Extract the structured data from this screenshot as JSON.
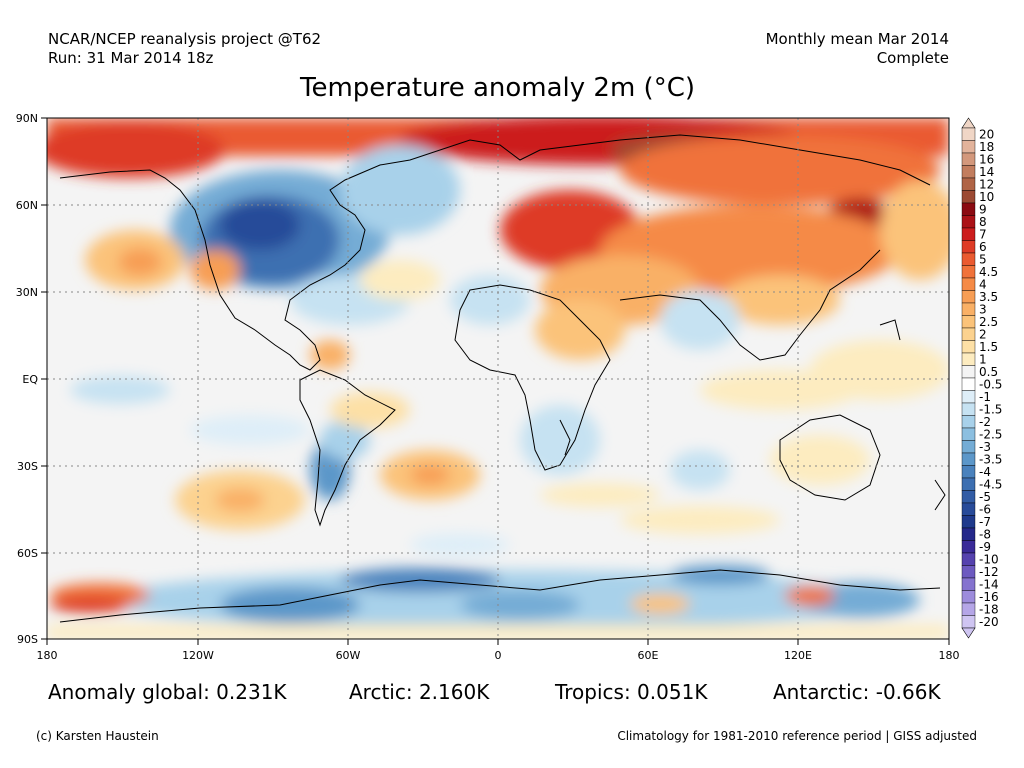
{
  "header": {
    "project": "NCAR/NCEP reanalysis project @T62",
    "run": "Run: 31 Mar 2014 18z",
    "period": "Monthly mean Mar 2014",
    "status": "Complete"
  },
  "title": "Temperature anomaly 2m (°C)",
  "map": {
    "lat_labels": [
      "90N",
      "60N",
      "30N",
      "EQ",
      "30S",
      "60S",
      "90S"
    ],
    "lon_labels": [
      "180",
      "120W",
      "60W",
      "0",
      "60E",
      "120E",
      "180"
    ],
    "colorbar": [
      {
        "label": "20",
        "color": "#f0d6c6"
      },
      {
        "label": "18",
        "color": "#e2b39b"
      },
      {
        "label": "16",
        "color": "#d3987c"
      },
      {
        "label": "14",
        "color": "#c27d5e"
      },
      {
        "label": "12",
        "color": "#b06446"
      },
      {
        "label": "10",
        "color": "#9c4a33"
      },
      {
        "label": "9",
        "color": "#8b0b12"
      },
      {
        "label": "8",
        "color": "#ab1217"
      },
      {
        "label": "7",
        "color": "#cc1d1d"
      },
      {
        "label": "6",
        "color": "#de3b26"
      },
      {
        "label": "5",
        "color": "#ea5a30"
      },
      {
        "label": "4.5",
        "color": "#f0723a"
      },
      {
        "label": "4",
        "color": "#f58a46"
      },
      {
        "label": "3.5",
        "color": "#f79e55"
      },
      {
        "label": "3",
        "color": "#f9b066"
      },
      {
        "label": "2.5",
        "color": "#fbc37a"
      },
      {
        "label": "2",
        "color": "#fcd28f"
      },
      {
        "label": "1.5",
        "color": "#fde0a6"
      },
      {
        "label": "1",
        "color": "#fdecc0"
      },
      {
        "label": "0.5",
        "color": "#f4f4f4"
      },
      {
        "label": "-0.5",
        "color": "#ffffff"
      },
      {
        "label": "-1",
        "color": "#deeef8"
      },
      {
        "label": "-1.5",
        "color": "#c6e2f2"
      },
      {
        "label": "-2",
        "color": "#a8d1ea"
      },
      {
        "label": "-2.5",
        "color": "#8cbfe0"
      },
      {
        "label": "-3",
        "color": "#74acd5"
      },
      {
        "label": "-3.5",
        "color": "#5c97c9"
      },
      {
        "label": "-4",
        "color": "#4a82bd"
      },
      {
        "label": "-4.5",
        "color": "#3d6fb1"
      },
      {
        "label": "-5",
        "color": "#325ca5"
      },
      {
        "label": "-6",
        "color": "#284b99"
      },
      {
        "label": "-7",
        "color": "#1f3a8c"
      },
      {
        "label": "-8",
        "color": "#24288a"
      },
      {
        "label": "-9",
        "color": "#3a2a98"
      },
      {
        "label": "-10",
        "color": "#5542ae"
      },
      {
        "label": "-12",
        "color": "#6d5ac0"
      },
      {
        "label": "-14",
        "color": "#8573cf"
      },
      {
        "label": "-16",
        "color": "#9d8cdc"
      },
      {
        "label": "-18",
        "color": "#b5a6e7"
      },
      {
        "label": "-20",
        "color": "#cfc5f2"
      }
    ]
  },
  "stats": {
    "global": "Anomaly global: 0.231K",
    "arctic": "Arctic: 2.160K",
    "tropics": "Tropics: 0.051K",
    "antarctic": "Antarctic: -0.66K"
  },
  "footer": {
    "credit": "(c) Karsten Haustein",
    "climatology": "Climatology for 1981-2010 reference period | GISS adjusted"
  }
}
